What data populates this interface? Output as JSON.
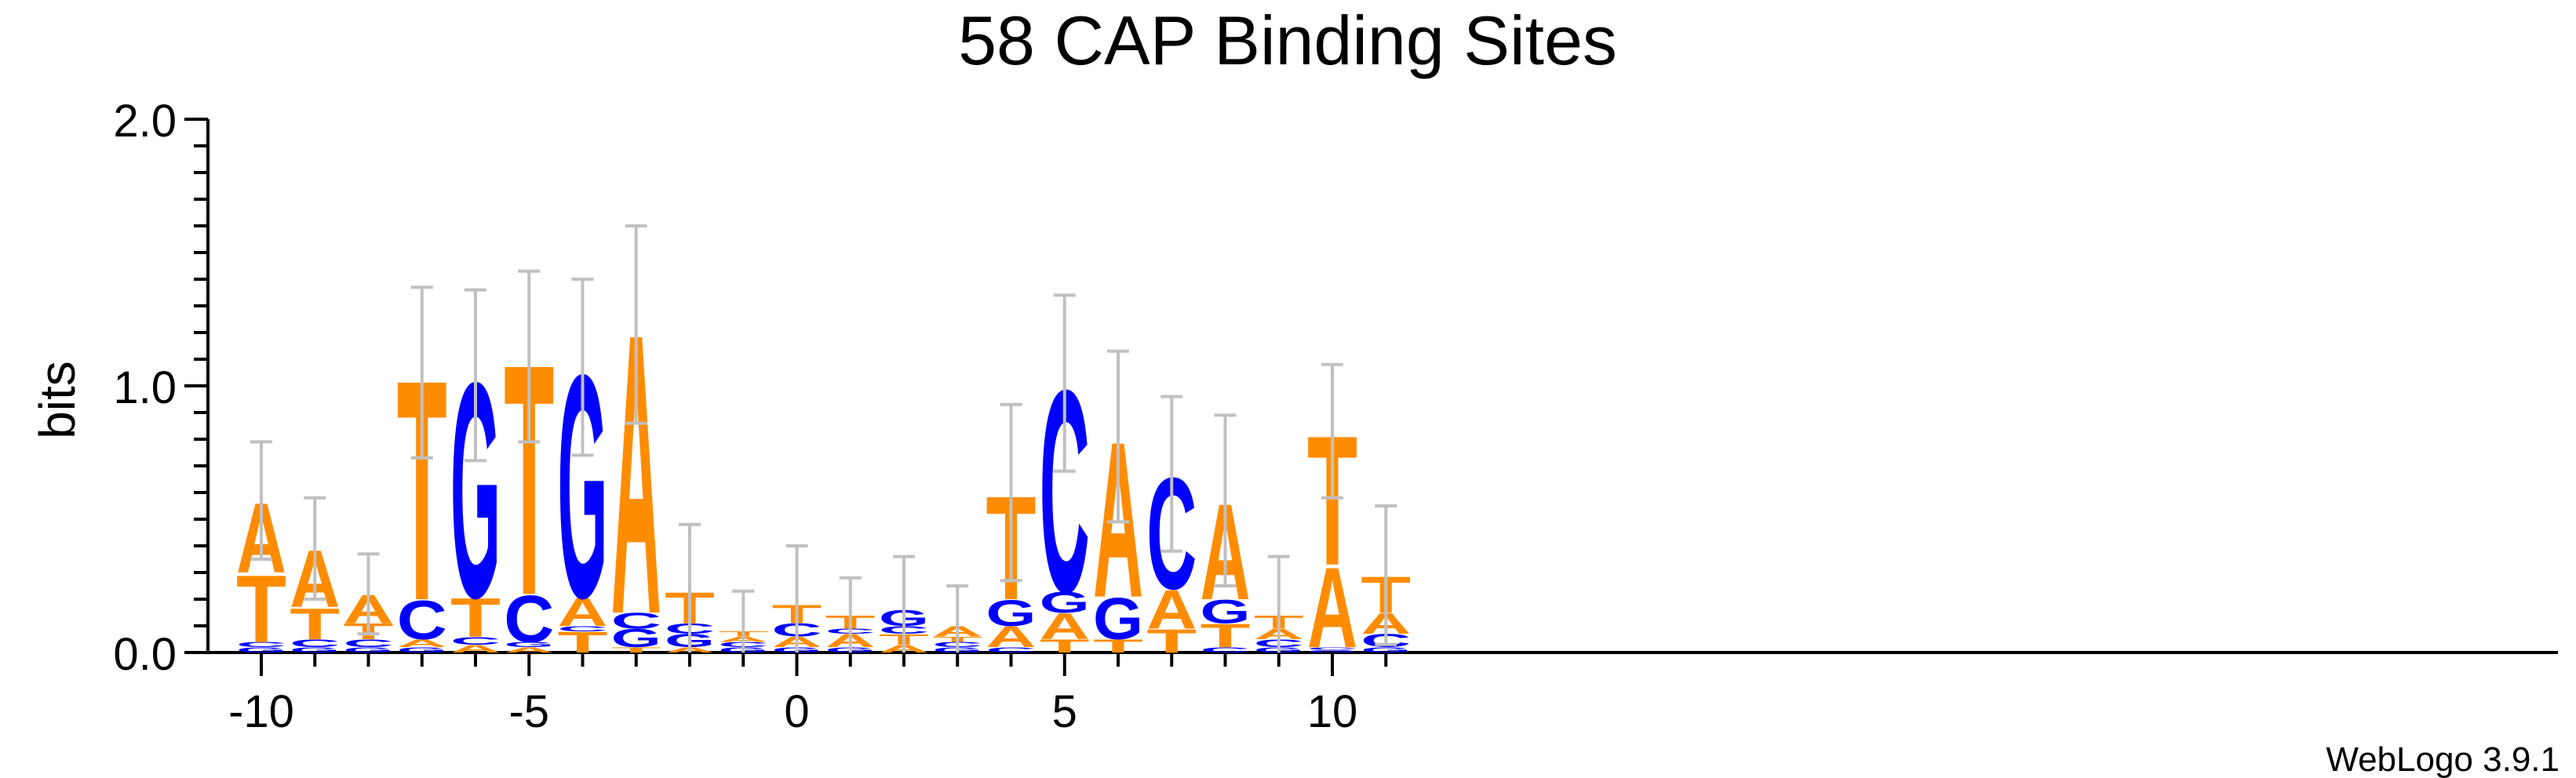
{
  "chart_data": {
    "type": "sequence-logo",
    "title": "58 CAP Binding Sites",
    "ylabel": "bits",
    "xlabel": "",
    "ylim": [
      0,
      2.0
    ],
    "y_ticks": [
      "0.0",
      "1.0",
      "2.0"
    ],
    "x_ticks": [
      "-10",
      "-5",
      "0",
      "5",
      "10"
    ],
    "x_tick_values": [
      -10,
      -5,
      0,
      5,
      10
    ],
    "footer": "WebLogo 3.9.1",
    "colors": {
      "A": "#ff8c00",
      "T": "#ff8c00",
      "C": "#0000ff",
      "G": "#0000ff"
    },
    "errorbar_color": "#c0c0c0",
    "positions": [
      {
        "pos": -10,
        "letters": [
          [
            "G",
            0.02
          ],
          [
            "C",
            0.02
          ],
          [
            "T",
            0.26
          ],
          [
            "A",
            0.27
          ]
        ],
        "error": 0.22
      },
      {
        "pos": -9,
        "letters": [
          [
            "G",
            0.02
          ],
          [
            "C",
            0.03
          ],
          [
            "T",
            0.12
          ],
          [
            "A",
            0.22
          ]
        ],
        "error": 0.19
      },
      {
        "pos": -8,
        "letters": [
          [
            "G",
            0.02
          ],
          [
            "C",
            0.03
          ],
          [
            "T",
            0.06
          ],
          [
            "A",
            0.11
          ]
        ],
        "error": 0.15
      },
      {
        "pos": -7,
        "letters": [
          [
            "G",
            0.02
          ],
          [
            "A",
            0.03
          ],
          [
            "C",
            0.15
          ],
          [
            "T",
            0.85
          ]
        ],
        "error": 0.32
      },
      {
        "pos": -6,
        "letters": [
          [
            "A",
            0.03
          ],
          [
            "C",
            0.03
          ],
          [
            "T",
            0.15
          ],
          [
            "G",
            0.83
          ]
        ],
        "error": 0.32
      },
      {
        "pos": -5,
        "letters": [
          [
            "A",
            0.02
          ],
          [
            "G",
            0.02
          ],
          [
            "C",
            0.18
          ],
          [
            "T",
            0.89
          ]
        ],
        "error": 0.32
      },
      {
        "pos": -4,
        "letters": [
          [
            "T",
            0.08
          ],
          [
            "C",
            0.02
          ],
          [
            "A",
            0.11
          ],
          [
            "G",
            0.86
          ]
        ],
        "error": 0.33
      },
      {
        "pos": -3,
        "letters": [
          [
            "T",
            0.02
          ],
          [
            "G",
            0.07
          ],
          [
            "C",
            0.06
          ],
          [
            "A",
            1.08
          ]
        ],
        "error": 0.37
      },
      {
        "pos": -2,
        "letters": [
          [
            "A",
            0.02
          ],
          [
            "G",
            0.05
          ],
          [
            "C",
            0.04
          ],
          [
            "T",
            0.12
          ]
        ],
        "error": 0.25
      },
      {
        "pos": -1,
        "letters": [
          [
            "G",
            0.02
          ],
          [
            "C",
            0.02
          ],
          [
            "A",
            0.02
          ],
          [
            "T",
            0.02
          ]
        ],
        "error": 0.15
      },
      {
        "pos": 0,
        "letters": [
          [
            "G",
            0.02
          ],
          [
            "A",
            0.04
          ],
          [
            "C",
            0.05
          ],
          [
            "T",
            0.07
          ]
        ],
        "error": 0.22
      },
      {
        "pos": 1,
        "letters": [
          [
            "G",
            0.02
          ],
          [
            "A",
            0.05
          ],
          [
            "C",
            0.02
          ],
          [
            "T",
            0.05
          ]
        ],
        "error": 0.14
      },
      {
        "pos": 2,
        "letters": [
          [
            "A",
            0.03
          ],
          [
            "T",
            0.04
          ],
          [
            "C",
            0.03
          ],
          [
            "G",
            0.06
          ]
        ],
        "error": 0.2
      },
      {
        "pos": 3,
        "letters": [
          [
            "G",
            0.02
          ],
          [
            "C",
            0.02
          ],
          [
            "T",
            0.02
          ],
          [
            "A",
            0.04
          ]
        ],
        "error": 0.15
      },
      {
        "pos": 4,
        "letters": [
          [
            "C",
            0.02
          ],
          [
            "A",
            0.08
          ],
          [
            "G",
            0.1
          ],
          [
            "T",
            0.4
          ]
        ],
        "error": 0.33
      },
      {
        "pos": 5,
        "letters": [
          [
            "T",
            0.05
          ],
          [
            "A",
            0.1
          ],
          [
            "G",
            0.08
          ],
          [
            "C",
            0.78
          ]
        ],
        "error": 0.33
      },
      {
        "pos": 6,
        "letters": [
          [
            "T",
            0.05
          ],
          [
            "G",
            0.16
          ],
          [
            "A",
            0.6
          ]
        ],
        "error": 0.32
      },
      {
        "pos": 7,
        "letters": [
          [
            "T",
            0.09
          ],
          [
            "A",
            0.15
          ],
          [
            "C",
            0.43
          ]
        ],
        "error": 0.29
      },
      {
        "pos": 8,
        "letters": [
          [
            "C",
            0.02
          ],
          [
            "T",
            0.09
          ],
          [
            "G",
            0.09
          ],
          [
            "A",
            0.37
          ]
        ],
        "error": 0.32
      },
      {
        "pos": 9,
        "letters": [
          [
            "G",
            0.02
          ],
          [
            "C",
            0.03
          ],
          [
            "A",
            0.04
          ],
          [
            "T",
            0.05
          ]
        ],
        "error": 0.22
      },
      {
        "pos": 10,
        "letters": [
          [
            "G",
            0.01
          ],
          [
            "C",
            0.01
          ],
          [
            "A",
            0.31
          ],
          [
            "T",
            0.5
          ]
        ],
        "error": 0.25
      },
      {
        "pos": 11,
        "letters": [
          [
            "G",
            0.02
          ],
          [
            "C",
            0.05
          ],
          [
            "A",
            0.08
          ],
          [
            "T",
            0.14
          ]
        ],
        "error": 0.26
      }
    ]
  }
}
